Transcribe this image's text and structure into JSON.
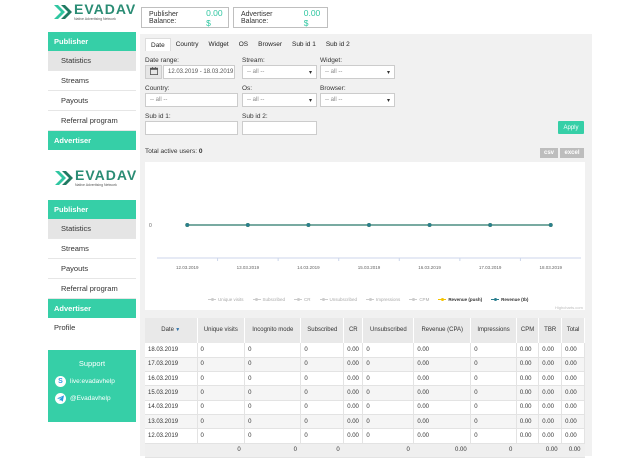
{
  "brand": {
    "wordmark": "EVADAV",
    "tagline": "Native Advertising Network",
    "accent": "#36cfa7"
  },
  "balances": {
    "publisher_label": "Publisher Balance:",
    "publisher_value": "0.00 $",
    "advertiser_label": "Advertiser Balance:",
    "advertiser_value": "0.00 $"
  },
  "sidebar_top": {
    "publisher": "Publisher",
    "items": [
      "Statistics",
      "Streams",
      "Payouts",
      "Referral program"
    ],
    "advertiser": "Advertiser"
  },
  "sidebar_main": {
    "publisher": "Publisher",
    "items": [
      "Statistics",
      "Streams",
      "Payouts",
      "Referral program"
    ],
    "advertiser": "Advertiser",
    "profile": "Profile"
  },
  "support": {
    "title": "Support",
    "skype": "live:evadavhelp",
    "telegram": "@Evadavhelp"
  },
  "tabs": [
    "Date",
    "Country",
    "Widget",
    "OS",
    "Browser",
    "Sub id 1",
    "Sub id 2"
  ],
  "filters": {
    "date_label": "Date range:",
    "date_value": "12.03.2019 - 18.03.2019",
    "stream_label": "Stream:",
    "stream_value": "-- all --",
    "widget_label": "Widget:",
    "widget_value": "-- all --",
    "country_label": "Country:",
    "country_value": "-- all --",
    "os_label": "Os:",
    "os_value": "-- all --",
    "browser_label": "Browser:",
    "browser_value": "-- all --",
    "subid1_label": "Sub id 1:",
    "subid2_label": "Sub id 2:",
    "apply": "Apply"
  },
  "active_users": {
    "label": "Total active users:",
    "value": "0"
  },
  "export": {
    "csv": "csv",
    "excel": "excel"
  },
  "chart_data": {
    "type": "line",
    "x": [
      "12.03.2019",
      "13.03.2019",
      "14.03.2019",
      "15.03.2019",
      "16.03.2019",
      "17.03.2019",
      "18.03.2019"
    ],
    "ytick": "0",
    "series": [
      {
        "name": "Unique visits",
        "values": [
          0,
          0,
          0,
          0,
          0,
          0,
          0
        ],
        "visible": false,
        "color": "#cccccc"
      },
      {
        "name": "Subscribed",
        "values": [
          0,
          0,
          0,
          0,
          0,
          0,
          0
        ],
        "visible": false,
        "color": "#cccccc"
      },
      {
        "name": "CR",
        "values": [
          0,
          0,
          0,
          0,
          0,
          0,
          0
        ],
        "visible": false,
        "color": "#cccccc"
      },
      {
        "name": "Unsubscribed",
        "values": [
          0,
          0,
          0,
          0,
          0,
          0,
          0
        ],
        "visible": false,
        "color": "#cccccc"
      },
      {
        "name": "Impressions",
        "values": [
          0,
          0,
          0,
          0,
          0,
          0,
          0
        ],
        "visible": false,
        "color": "#cccccc"
      },
      {
        "name": "CPM",
        "values": [
          0,
          0,
          0,
          0,
          0,
          0,
          0
        ],
        "visible": false,
        "color": "#cccccc"
      },
      {
        "name": "Revenue (push)",
        "values": [
          0,
          0,
          0,
          0,
          0,
          0,
          0
        ],
        "visible": true,
        "color": "#f5c400"
      },
      {
        "name": "Revenue (tb)",
        "values": [
          0,
          0,
          0,
          0,
          0,
          0,
          0
        ],
        "visible": true,
        "color": "#2a7f8f"
      }
    ],
    "credit": "Highcharts.com"
  },
  "table": {
    "headers": [
      "Date",
      "Unique visits",
      "Incognito mode",
      "Subscribed",
      "CR",
      "Unsubscribed",
      "Revenue (CPA)",
      "Impressions",
      "CPM",
      "TBR",
      "Total"
    ],
    "rows": [
      [
        "18.03.2019",
        "0",
        "0",
        "0",
        "0.00",
        "0",
        "0.00",
        "0",
        "0.00",
        "0.00",
        "0.00"
      ],
      [
        "17.03.2019",
        "0",
        "0",
        "0",
        "0.00",
        "0",
        "0.00",
        "0",
        "0.00",
        "0.00",
        "0.00"
      ],
      [
        "16.03.2019",
        "0",
        "0",
        "0",
        "0.00",
        "0",
        "0.00",
        "0",
        "0.00",
        "0.00",
        "0.00"
      ],
      [
        "15.03.2019",
        "0",
        "0",
        "0",
        "0.00",
        "0",
        "0.00",
        "0",
        "0.00",
        "0.00",
        "0.00"
      ],
      [
        "14.03.2019",
        "0",
        "0",
        "0",
        "0.00",
        "0",
        "0.00",
        "0",
        "0.00",
        "0.00",
        "0.00"
      ],
      [
        "13.03.2019",
        "0",
        "0",
        "0",
        "0.00",
        "0",
        "0.00",
        "0",
        "0.00",
        "0.00",
        "0.00"
      ],
      [
        "12.03.2019",
        "0",
        "0",
        "0",
        "0.00",
        "0",
        "0.00",
        "0",
        "0.00",
        "0.00",
        "0.00"
      ]
    ],
    "totals": [
      "",
      "0",
      "0",
      "0",
      "",
      "0",
      "0.00",
      "0",
      "",
      "0.00",
      "0.00"
    ]
  }
}
